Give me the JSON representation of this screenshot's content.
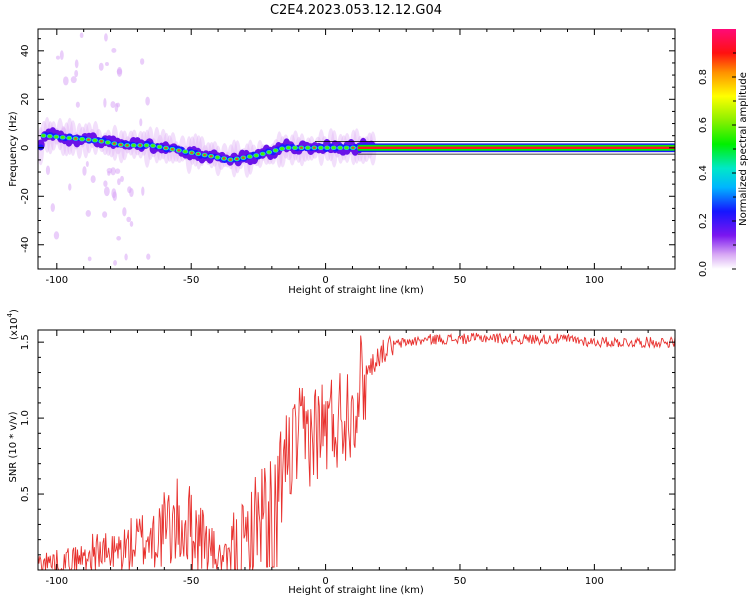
{
  "figure": {
    "title": "C2E4.2023.053.12.12.G04"
  },
  "chart_data": [
    {
      "type": "heatmap",
      "title": "C2E4.2023.053.12.12.G04",
      "xlabel": "Height of straight line (km)",
      "ylabel": "Frequency (Hz)",
      "xlim": [
        -107,
        130
      ],
      "ylim": [
        -50,
        49
      ],
      "xticks": [
        -100,
        -50,
        0,
        50,
        100
      ],
      "yticks": [
        -40,
        -20,
        0,
        20,
        40
      ],
      "colorbar": {
        "label": "Normalized spectral amplitude",
        "range": [
          0,
          1
        ],
        "ticks": [
          "0.0",
          "0.2",
          "0.4",
          "0.6",
          "0.8"
        ]
      },
      "ridge": {
        "description_points_x": [
          -105,
          -95,
          -85,
          -75,
          -65,
          -55,
          -45,
          -35,
          -25,
          -15,
          -5,
          5,
          15,
          130
        ],
        "frequency_hz": [
          5,
          4,
          3,
          1,
          1,
          -1,
          -3,
          -5,
          -3,
          0,
          0,
          0,
          0,
          0
        ]
      }
    },
    {
      "type": "line",
      "xlabel": "Height of straight line (km)",
      "ylabel": "SNR (10 * v/v)",
      "y_multiplier_label": "(x10",
      "y_multiplier_exp": "4",
      "xlim": [
        -107,
        130
      ],
      "ylim": [
        0,
        1.58
      ],
      "xticks": [
        -100,
        -50,
        0,
        50,
        100
      ],
      "yticks": [
        0.5,
        1.0,
        1.5
      ],
      "series": [
        {
          "color": "#e8312e",
          "x": [
            -107,
            -100,
            -95,
            -90,
            -85,
            -80,
            -75,
            -70,
            -65,
            -60,
            -55,
            -50,
            -45,
            -40,
            -35,
            -30,
            -25,
            -20,
            -15,
            -10,
            -5,
            0,
            5,
            10,
            15,
            20,
            25,
            30,
            40,
            50,
            60,
            70,
            80,
            90,
            100,
            110,
            120,
            130
          ],
          "y": [
            0.05,
            0.05,
            0.06,
            0.08,
            0.12,
            0.1,
            0.14,
            0.18,
            0.22,
            0.26,
            0.3,
            0.28,
            0.2,
            0.08,
            0.06,
            0.12,
            0.35,
            0.5,
            0.7,
            0.85,
            0.9,
            0.95,
            1.0,
            1.1,
            1.3,
            1.42,
            1.48,
            1.5,
            1.52,
            1.52,
            1.53,
            1.52,
            1.52,
            1.52,
            1.5,
            1.5,
            1.5,
            1.5
          ]
        }
      ]
    }
  ]
}
